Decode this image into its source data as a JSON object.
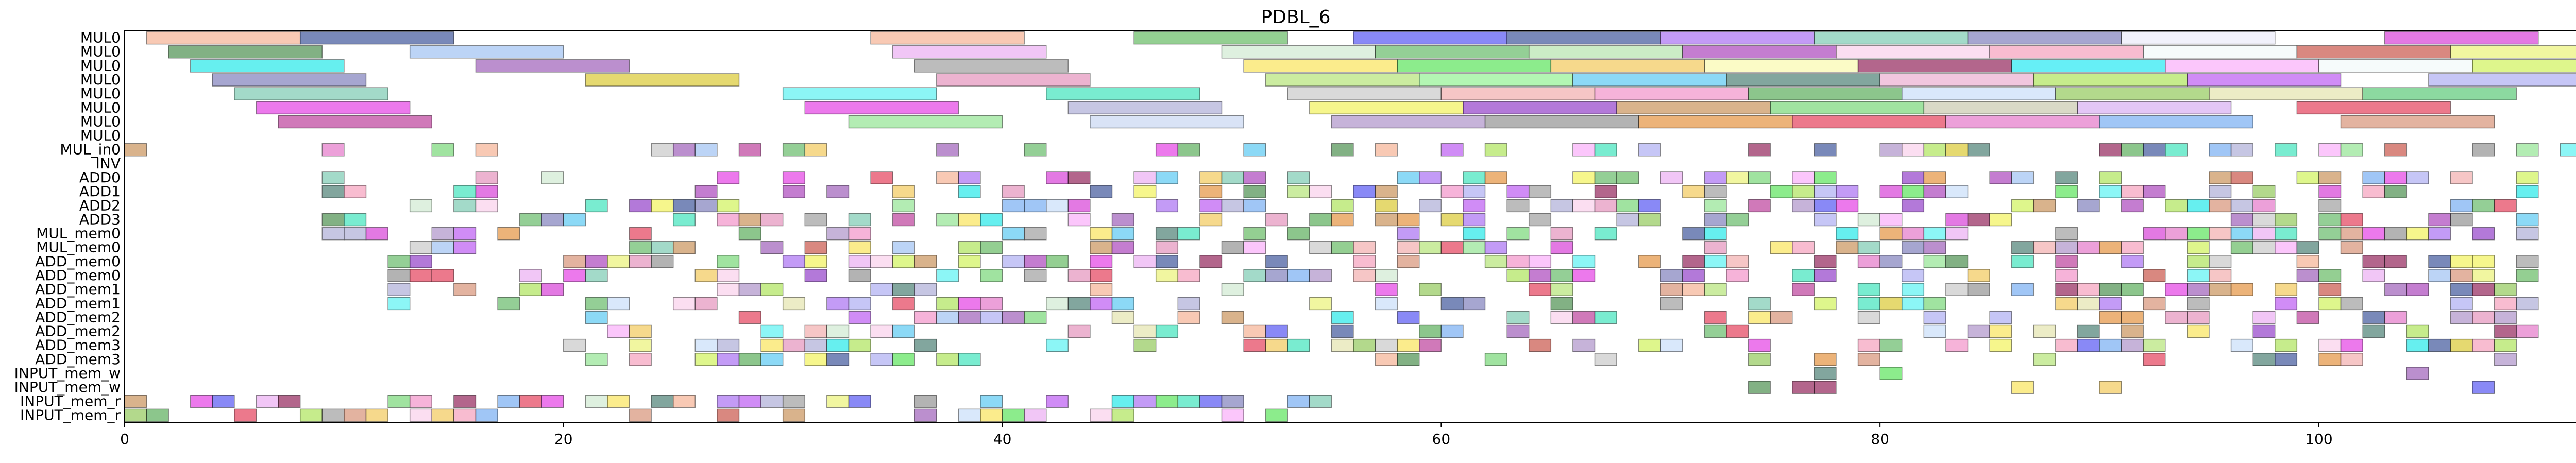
{
  "chart_data": {
    "type": "gantt",
    "title": "PDBL_6",
    "xlabel": "",
    "ylabel": "",
    "xlim": [
      0,
      112
    ],
    "x_ticks": [
      0,
      20,
      40,
      60,
      80,
      100
    ],
    "grid": false,
    "rows": [
      "MUL0",
      "MUL0",
      "MUL0",
      "MUL0",
      "MUL0",
      "MUL0",
      "MUL0",
      "MUL0",
      "MUL_in0",
      "INV",
      "ADD0",
      "ADD1",
      "ADD2",
      "ADD3",
      "MUL_mem0",
      "MUL_mem0",
      "ADD_mem0",
      "ADD_mem0",
      "ADD_mem1",
      "ADD_mem1",
      "ADD_mem2",
      "ADD_mem2",
      "ADD_mem3",
      "ADD_mem3",
      "INPUT_mem_w",
      "INPUT_mem_w",
      "INPUT_mem_r",
      "INPUT_mem_r"
    ],
    "tasks": [
      {
        "row": 0,
        "start": 1,
        "end": 8,
        "color": "#f4a582"
      },
      {
        "row": 0,
        "start": 8,
        "end": 15,
        "color": "#1f3a8a"
      },
      {
        "row": 0,
        "start": 34,
        "end": 41,
        "color": "#f4a582"
      },
      {
        "row": 0,
        "start": 46,
        "end": 53,
        "color": "#4daf4a"
      },
      {
        "row": 0,
        "start": 56,
        "end": 63,
        "color": "#3a3af0"
      },
      {
        "row": 0,
        "start": 63,
        "end": 70,
        "color": "#1f3a8a"
      },
      {
        "row": 0,
        "start": 70,
        "end": 77,
        "color": "#9b59f0"
      },
      {
        "row": 0,
        "start": 77,
        "end": 84,
        "color": "#66c2a5"
      },
      {
        "row": 0,
        "start": 84,
        "end": 91,
        "color": "#6a6ab0"
      },
      {
        "row": 0,
        "start": 91,
        "end": 98,
        "color": "#e8e8f8"
      },
      {
        "row": 0,
        "start": 103,
        "end": 110,
        "color": "#d020d0"
      },
      {
        "row": 1,
        "start": 2,
        "end": 9,
        "color": "#2e7d32"
      },
      {
        "row": 1,
        "start": 13,
        "end": 20,
        "color": "#8fb8f0"
      },
      {
        "row": 1,
        "start": 35,
        "end": 42,
        "color": "#e8a0f0"
      },
      {
        "row": 1,
        "start": 50,
        "end": 57,
        "color": "#c8e6c9"
      },
      {
        "row": 1,
        "start": 57,
        "end": 64,
        "color": "#4caf50"
      },
      {
        "row": 1,
        "start": 64,
        "end": 71,
        "color": "#a8e0a0"
      },
      {
        "row": 1,
        "start": 71,
        "end": 78,
        "color": "#9c27b0"
      },
      {
        "row": 1,
        "start": 78,
        "end": 85,
        "color": "#f8c8e8"
      },
      {
        "row": 1,
        "start": 85,
        "end": 92,
        "color": "#f48fb1"
      },
      {
        "row": 1,
        "start": 92,
        "end": 99,
        "color": "#f0f8f8"
      },
      {
        "row": 1,
        "start": 99,
        "end": 106,
        "color": "#c0392b"
      },
      {
        "row": 1,
        "start": 106,
        "end": 113,
        "color": "#e8f060"
      },
      {
        "row": 2,
        "start": 3,
        "end": 10,
        "color": "#00e5e5"
      },
      {
        "row": 2,
        "start": 16,
        "end": 23,
        "color": "#8e44ad"
      },
      {
        "row": 2,
        "start": 36,
        "end": 43,
        "color": "#909090"
      },
      {
        "row": 2,
        "start": 51,
        "end": 58,
        "color": "#f8e040"
      },
      {
        "row": 2,
        "start": 58,
        "end": 65,
        "color": "#40e040"
      },
      {
        "row": 2,
        "start": 65,
        "end": 72,
        "color": "#f0c040"
      },
      {
        "row": 2,
        "start": 72,
        "end": 79,
        "color": "#f8f8a0"
      },
      {
        "row": 2,
        "start": 79,
        "end": 86,
        "color": "#800040"
      },
      {
        "row": 2,
        "start": 86,
        "end": 93,
        "color": "#00e5f0"
      },
      {
        "row": 2,
        "start": 93,
        "end": 100,
        "color": "#f8a0f8"
      },
      {
        "row": 2,
        "start": 100,
        "end": 107,
        "color": "#f0f8f8"
      },
      {
        "row": 2,
        "start": 107,
        "end": 112,
        "color": "#c8f040"
      },
      {
        "row": 3,
        "start": 4,
        "end": 11,
        "color": "#6a6ab0"
      },
      {
        "row": 3,
        "start": 21,
        "end": 28,
        "color": "#d4c010"
      },
      {
        "row": 3,
        "start": 37,
        "end": 44,
        "color": "#e080b0"
      },
      {
        "row": 3,
        "start": 52,
        "end": 59,
        "color": "#a8e060"
      },
      {
        "row": 3,
        "start": 59,
        "end": 66,
        "color": "#80f080"
      },
      {
        "row": 3,
        "start": 66,
        "end": 73,
        "color": "#40c0f0"
      },
      {
        "row": 3,
        "start": 73,
        "end": 80,
        "color": "#2e6b5e"
      },
      {
        "row": 3,
        "start": 80,
        "end": 87,
        "color": "#e8a0c8"
      },
      {
        "row": 3,
        "start": 87,
        "end": 94,
        "color": "#a0e040"
      },
      {
        "row": 3,
        "start": 94,
        "end": 101,
        "color": "#b040f0"
      },
      {
        "row": 3,
        "start": 105,
        "end": 112,
        "color": "#a0a0f0"
      },
      {
        "row": 4,
        "start": 5,
        "end": 12,
        "color": "#66c2a5"
      },
      {
        "row": 4,
        "start": 30,
        "end": 37,
        "color": "#40f0f0"
      },
      {
        "row": 4,
        "start": 42,
        "end": 49,
        "color": "#20e0b0"
      },
      {
        "row": 4,
        "start": 53,
        "end": 60,
        "color": "#c0c0c0"
      },
      {
        "row": 4,
        "start": 60,
        "end": 67,
        "color": "#f0a0a0"
      },
      {
        "row": 4,
        "start": 67,
        "end": 74,
        "color": "#f080c0"
      },
      {
        "row": 4,
        "start": 74,
        "end": 81,
        "color": "#40a040"
      },
      {
        "row": 4,
        "start": 81,
        "end": 88,
        "color": "#c0d8f8"
      },
      {
        "row": 4,
        "start": 88,
        "end": 95,
        "color": "#80c040"
      },
      {
        "row": 4,
        "start": 95,
        "end": 102,
        "color": "#e0e0a0"
      },
      {
        "row": 4,
        "start": 102,
        "end": 109,
        "color": "#40c060"
      },
      {
        "row": 5,
        "start": 6,
        "end": 13,
        "color": "#e020e0"
      },
      {
        "row": 5,
        "start": 31,
        "end": 38,
        "color": "#e020e0"
      },
      {
        "row": 5,
        "start": 43,
        "end": 50,
        "color": "#a0a0d0"
      },
      {
        "row": 5,
        "start": 54,
        "end": 61,
        "color": "#f0f040"
      },
      {
        "row": 5,
        "start": 61,
        "end": 68,
        "color": "#8020c0"
      },
      {
        "row": 5,
        "start": 68,
        "end": 75,
        "color": "#c08040"
      },
      {
        "row": 5,
        "start": 75,
        "end": 82,
        "color": "#60d060"
      },
      {
        "row": 5,
        "start": 82,
        "end": 89,
        "color": "#c0c0a0"
      },
      {
        "row": 5,
        "start": 89,
        "end": 96,
        "color": "#d0a0f0"
      },
      {
        "row": 5,
        "start": 99,
        "end": 106,
        "color": "#e02040"
      },
      {
        "row": 6,
        "start": 7,
        "end": 14,
        "color": "#b0208a"
      },
      {
        "row": 6,
        "start": 33,
        "end": 40,
        "color": "#80e080"
      },
      {
        "row": 6,
        "start": 44,
        "end": 51,
        "color": "#c0d0f0"
      },
      {
        "row": 6,
        "start": 55,
        "end": 62,
        "color": "#a080c0"
      },
      {
        "row": 6,
        "start": 62,
        "end": 69,
        "color": "#808080"
      },
      {
        "row": 6,
        "start": 69,
        "end": 76,
        "color": "#e08020"
      },
      {
        "row": 6,
        "start": 76,
        "end": 83,
        "color": "#e02040"
      },
      {
        "row": 6,
        "start": 83,
        "end": 90,
        "color": "#e060c0"
      },
      {
        "row": 6,
        "start": 90,
        "end": 97,
        "color": "#60a0f0"
      },
      {
        "row": 6,
        "start": 101,
        "end": 108,
        "color": "#d08060"
      }
    ],
    "sparse_rows": {
      "first_row": 8,
      "seed": 6,
      "density": [
        0.35,
        0,
        0.4,
        0.45,
        0.45,
        0.4,
        0.4,
        0.4,
        0.45,
        0.45,
        0.45,
        0.45,
        0.4,
        0.4,
        0.4,
        0.4,
        0.2,
        0.2,
        0.5,
        0.5
      ],
      "x_range": [
        [
          0,
          112
        ],
        [
          0,
          0
        ],
        [
          9,
          110
        ],
        [
          9,
          110
        ],
        [
          9,
          110
        ],
        [
          9,
          110
        ],
        [
          9,
          110
        ],
        [
          9,
          110
        ],
        [
          12,
          110
        ],
        [
          12,
          110
        ],
        [
          12,
          110
        ],
        [
          12,
          110
        ],
        [
          20,
          110
        ],
        [
          20,
          110
        ],
        [
          20,
          110
        ],
        [
          20,
          110
        ],
        [
          70,
          110
        ],
        [
          70,
          110
        ],
        [
          0,
          56
        ],
        [
          0,
          56
        ]
      ],
      "palette": [
        "#f4a582",
        "#1f3a8a",
        "#4daf4a",
        "#3a3af0",
        "#9b59f0",
        "#66c2a5",
        "#d020d0",
        "#2e7d32",
        "#8fb8f0",
        "#e8a0f0",
        "#c8e6c9",
        "#4caf50",
        "#9c27b0",
        "#f8c8e8",
        "#f48fb1",
        "#c0392b",
        "#e8f060",
        "#00e5e5",
        "#8e44ad",
        "#909090",
        "#f8e040",
        "#40e040",
        "#f0c040",
        "#800040",
        "#f8a0f8",
        "#c8f040",
        "#6a6ab0",
        "#d4c010",
        "#e080b0",
        "#a8e060",
        "#40c0f0",
        "#2e6b5e",
        "#a0e040",
        "#b040f0",
        "#a0a0f0",
        "#40f0f0",
        "#20e0b0",
        "#c0c0c0",
        "#f0a0a0",
        "#f080c0",
        "#40a040",
        "#c0d8f8",
        "#80c040",
        "#e0e0a0",
        "#e020e0",
        "#a0a0d0",
        "#f0f040",
        "#8020c0",
        "#c08040",
        "#60d060",
        "#e02040",
        "#b0208a",
        "#80e080",
        "#a080c0",
        "#808080",
        "#e08020",
        "#e060c0",
        "#60a0f0",
        "#d08060"
      ]
    }
  }
}
